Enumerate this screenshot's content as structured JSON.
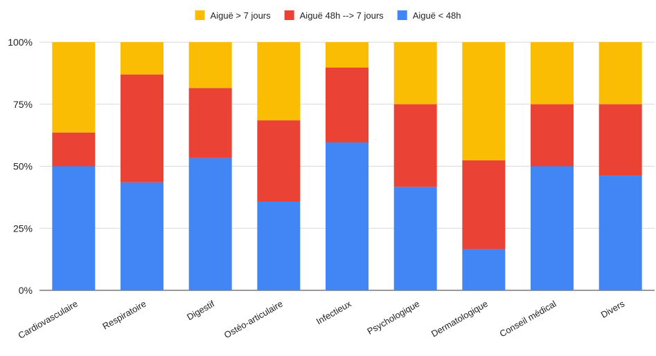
{
  "chart_data": {
    "type": "bar",
    "stacked": true,
    "percent_stacked": true,
    "categories": [
      "Cardiovasculaire",
      "Respiratoire",
      "Digestif",
      "Ostéo-articulaire",
      "Infectieux",
      "Psychologique",
      "Dermatologique",
      "Conseil médical",
      "Divers"
    ],
    "series": [
      {
        "name": "Aiguë < 48h",
        "color": "#4285F4",
        "values": [
          50,
          43.5,
          53.3,
          35.8,
          59.6,
          41.7,
          16.7,
          50,
          46.2
        ]
      },
      {
        "name": "Aiguë 48h --> 7 jours",
        "color": "#EA4335",
        "values": [
          13.6,
          43.5,
          28.2,
          32.7,
          30.2,
          33.3,
          35.7,
          25,
          28.8
        ]
      },
      {
        "name": "Aiguë > 7 jours",
        "color": "#FBBC04",
        "values": [
          36.4,
          13,
          18.5,
          31.5,
          10.2,
          25,
          47.6,
          25,
          25
        ]
      }
    ],
    "legend_order": [
      "Aiguë > 7 jours",
      "Aiguë 48h --> 7 jours",
      "Aiguë < 48h"
    ],
    "y_ticks": [
      "0%",
      "25%",
      "50%",
      "75%",
      "100%"
    ],
    "ylim": [
      0,
      100
    ],
    "grid": true,
    "legend_position": "top-center",
    "title": "",
    "xlabel": "",
    "ylabel": ""
  }
}
